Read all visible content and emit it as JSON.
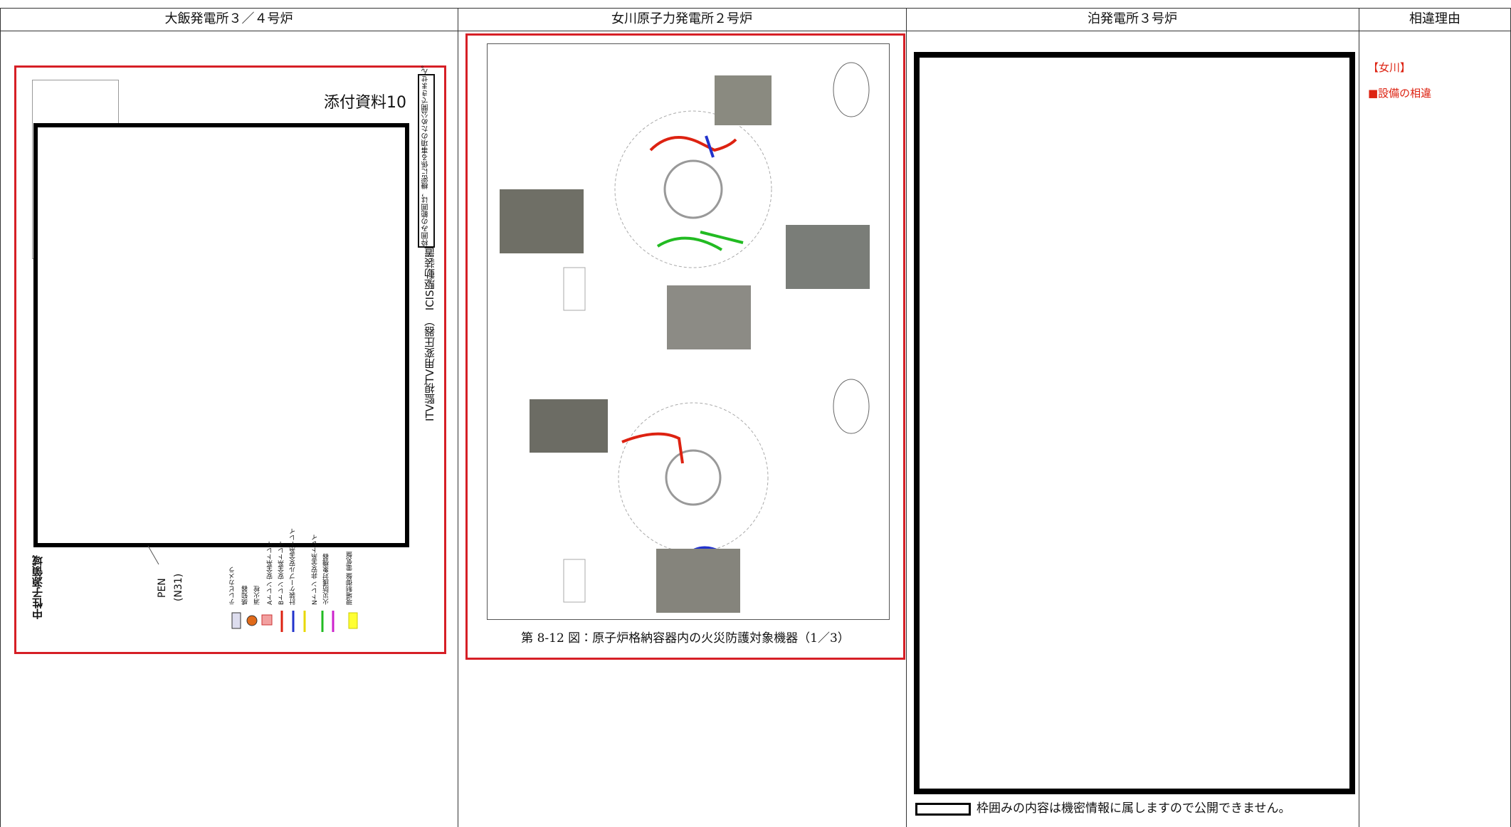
{
  "header": {
    "columns": [
      "大飯発電所３／４号炉",
      "女川原子力発電所２号炉",
      "泊発電所３号炉",
      "相違理由"
    ]
  },
  "ohi": {
    "attachment_label": "添付資料10",
    "side_note": "枠囲みの範囲は，機密に係る事項のため公開できません。",
    "device_label": "ITV監視TV用変圧器）　ICIS駆動装置",
    "region_label": "中性子源領域",
    "pen_label": "PEN",
    "pen_id": "(N31)",
    "legend": [
      "テレビカメラ",
      "感知器",
      "消火栓",
      "Aトレン 安全系トレイ",
      "Bトレン 安全系トレイ",
      "計装ケーブル安全系トレイ",
      "Nトレン 非安全系トレイ",
      "火災防護対象機器",
      "現場制御盤 電気盤"
    ]
  },
  "onagawa": {
    "caption": "第 8-12 図：原子炉格納容器内の火災防護対象機器（1／3）"
  },
  "tomari": {
    "notice": "枠囲みの内容は機密情報に属しますので公開できません。"
  },
  "reason": {
    "plant": "【女川】",
    "item": "■設備の相違"
  }
}
